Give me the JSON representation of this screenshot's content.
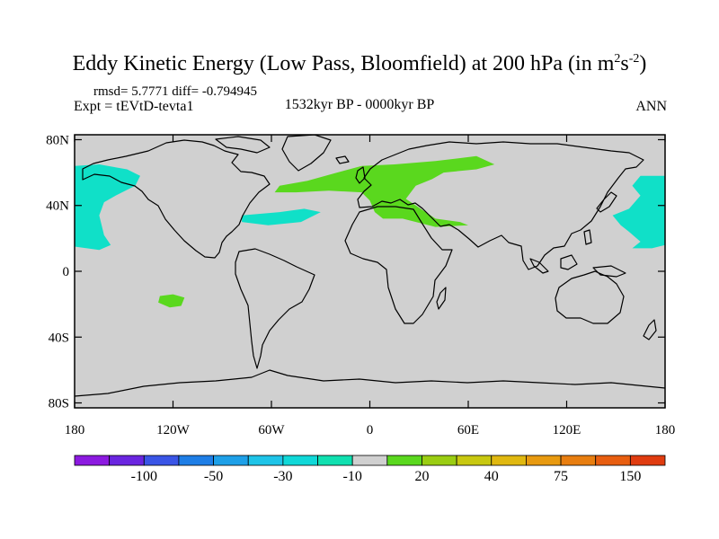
{
  "title": {
    "main": "Eddy Kinetic Energy (Low Pass, Bloomfield) at 200 hPa (in m",
    "sup1": "2",
    "mid": "s",
    "sup2": "-2",
    "end": ")"
  },
  "stats": {
    "rmsd_label": "rmsd= 5.7771",
    "diff_label": "diff= -0.794945"
  },
  "experiment": "Expt = tEVtD-tevta1",
  "period": "1532kyr BP - 0000kyr BP",
  "season": "ANN",
  "map": {
    "background_color": "#d0d0d0",
    "lat_ticks": [
      {
        "label": "80N",
        "lat": 80
      },
      {
        "label": "40N",
        "lat": 40
      },
      {
        "label": "0",
        "lat": 0
      },
      {
        "label": "40S",
        "lat": -40
      },
      {
        "label": "80S",
        "lat": -80
      }
    ],
    "lon_ticks": [
      {
        "label": "180",
        "lon": -180
      },
      {
        "label": "120W",
        "lon": -120
      },
      {
        "label": "60W",
        "lon": -60
      },
      {
        "label": "0",
        "lon": 0
      },
      {
        "label": "60E",
        "lon": 60
      },
      {
        "label": "120E",
        "lon": 120
      },
      {
        "label": "180",
        "lon": 180
      }
    ],
    "anomaly_regions": [
      {
        "name": "north-pacific-east",
        "color": "#10e0c8",
        "points": [
          [
            -180,
            64
          ],
          [
            -165,
            65
          ],
          [
            -148,
            62
          ],
          [
            -140,
            58
          ],
          [
            -143,
            52
          ],
          [
            -155,
            46
          ],
          [
            -162,
            42
          ],
          [
            -165,
            34
          ],
          [
            -162,
            22
          ],
          [
            -158,
            16
          ],
          [
            -165,
            13
          ],
          [
            -180,
            15
          ]
        ]
      },
      {
        "name": "north-pacific-west",
        "color": "#10e0c8",
        "points": [
          [
            180,
            58
          ],
          [
            165,
            58
          ],
          [
            160,
            52
          ],
          [
            165,
            46
          ],
          [
            158,
            38
          ],
          [
            148,
            34
          ],
          [
            153,
            28
          ],
          [
            158,
            24
          ],
          [
            165,
            18
          ],
          [
            160,
            14
          ],
          [
            172,
            14
          ],
          [
            180,
            16
          ]
        ]
      },
      {
        "name": "north-atlantic",
        "color": "#10e0c8",
        "points": [
          [
            -78,
            34
          ],
          [
            -55,
            36
          ],
          [
            -40,
            38
          ],
          [
            -30,
            36
          ],
          [
            -42,
            30
          ],
          [
            -62,
            28
          ],
          [
            -78,
            30
          ]
        ]
      },
      {
        "name": "eurasia-jet",
        "color": "#5ad81e",
        "points": [
          [
            -55,
            52
          ],
          [
            -38,
            55
          ],
          [
            -20,
            60
          ],
          [
            -5,
            64
          ],
          [
            15,
            65
          ],
          [
            40,
            67
          ],
          [
            65,
            70
          ],
          [
            76,
            65
          ],
          [
            65,
            62
          ],
          [
            45,
            60
          ],
          [
            38,
            56
          ],
          [
            28,
            52
          ],
          [
            22,
            44
          ],
          [
            40,
            32
          ],
          [
            55,
            30
          ],
          [
            60,
            28
          ],
          [
            40,
            27
          ],
          [
            20,
            32
          ],
          [
            8,
            32
          ],
          [
            3,
            36
          ],
          [
            0,
            43
          ],
          [
            -5,
            48
          ],
          [
            -25,
            49
          ],
          [
            -45,
            48
          ],
          [
            -58,
            48
          ]
        ]
      },
      {
        "name": "south-pacific-patch",
        "color": "#5ad81e",
        "points": [
          [
            -128,
            -15
          ],
          [
            -120,
            -14
          ],
          [
            -113,
            -16
          ],
          [
            -115,
            -21
          ],
          [
            -122,
            -22
          ],
          [
            -129,
            -19
          ]
        ]
      }
    ],
    "coastline_color": "#000000"
  },
  "colorbar": {
    "labels": [
      "-100",
      "-50",
      "-30",
      "-10",
      "20",
      "40",
      "75",
      "150"
    ],
    "colors": [
      "#8c1ae0",
      "#6a25e0",
      "#3a55e6",
      "#1e7ee6",
      "#1ea0e8",
      "#1ec4e8",
      "#10d8d8",
      "#10e0b0",
      "#d0d0d0",
      "#5ad81e",
      "#9acd12",
      "#c8c810",
      "#e0b810",
      "#e89a10",
      "#e87e10",
      "#e85e10",
      "#e03c10"
    ]
  }
}
